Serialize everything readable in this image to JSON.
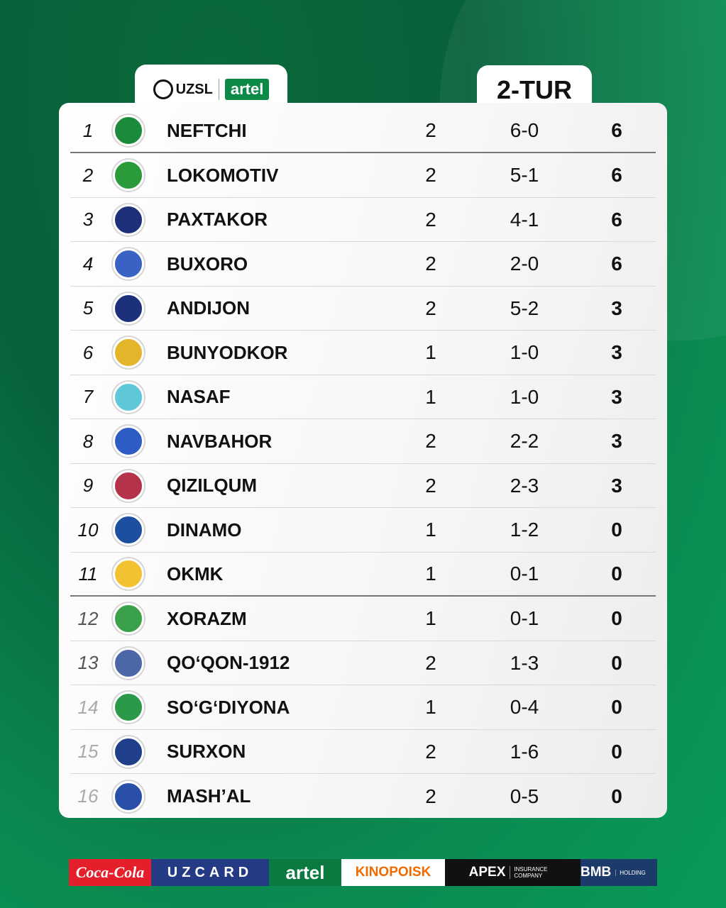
{
  "header": {
    "league_logo": "UZSL",
    "brand_logo": "artel",
    "round": "2-TUR"
  },
  "standings": [
    {
      "rank": "1",
      "team": "NEFTCHI",
      "played": "2",
      "goals": "6-0",
      "points": "6",
      "crest_color": "#1b8a3a"
    },
    {
      "rank": "2",
      "team": "LOKOMOTIV",
      "played": "2",
      "goals": "5-1",
      "points": "6",
      "crest_color": "#2a9a3a"
    },
    {
      "rank": "3",
      "team": "PAXTAKOR",
      "played": "2",
      "goals": "4-1",
      "points": "6",
      "crest_color": "#1e2f7a"
    },
    {
      "rank": "4",
      "team": "BUXORO",
      "played": "2",
      "goals": "2-0",
      "points": "6",
      "crest_color": "#3a62c4"
    },
    {
      "rank": "5",
      "team": "ANDIJON",
      "played": "2",
      "goals": "5-2",
      "points": "3",
      "crest_color": "#1b2f7a"
    },
    {
      "rank": "6",
      "team": "BUNYODKOR",
      "played": "1",
      "goals": "1-0",
      "points": "3",
      "crest_color": "#e3b52a"
    },
    {
      "rank": "7",
      "team": "NASAF",
      "played": "1",
      "goals": "1-0",
      "points": "3",
      "crest_color": "#5fc8d8"
    },
    {
      "rank": "8",
      "team": "NAVBAHOR",
      "played": "2",
      "goals": "2-2",
      "points": "3",
      "crest_color": "#2d5cc4"
    },
    {
      "rank": "9",
      "team": "QIZILQUM",
      "played": "2",
      "goals": "2-3",
      "points": "3",
      "crest_color": "#b5334a"
    },
    {
      "rank": "10",
      "team": "DINAMO",
      "played": "1",
      "goals": "1-2",
      "points": "0",
      "crest_color": "#1c4fa0"
    },
    {
      "rank": "11",
      "team": "OKMK",
      "played": "1",
      "goals": "0-1",
      "points": "0",
      "crest_color": "#f2c230"
    },
    {
      "rank": "12",
      "team": "XORAZM",
      "played": "1",
      "goals": "0-1",
      "points": "0",
      "crest_color": "#3aa04a"
    },
    {
      "rank": "13",
      "team": "QO‘QON-1912",
      "played": "2",
      "goals": "1-3",
      "points": "0",
      "crest_color": "#4b67a8"
    },
    {
      "rank": "14",
      "team": "SO‘G‘DIYONA",
      "played": "1",
      "goals": "0-4",
      "points": "0",
      "crest_color": "#2a9a4a"
    },
    {
      "rank": "15",
      "team": "SURXON",
      "played": "2",
      "goals": "1-6",
      "points": "0",
      "crest_color": "#1f3f8a"
    },
    {
      "rank": "16",
      "team": "MASH’AL",
      "played": "2",
      "goals": "0-5",
      "points": "0",
      "crest_color": "#2a4fa8"
    }
  ],
  "rank_colors": {
    "top": "#111111",
    "mid": "#555555",
    "low": "#aaaaaa"
  },
  "sponsors": [
    {
      "name": "Coca-Cola",
      "bg": "#e41e2b",
      "fg": "#ffffff"
    },
    {
      "name": "UZCARD",
      "bg": "#243a85",
      "fg": "#ffffff"
    },
    {
      "name": "artel",
      "bg": "#0b7a40",
      "fg": "#ffffff"
    },
    {
      "name": "KINOPOISK",
      "bg": "#ffffff",
      "fg": "#f06a00"
    },
    {
      "name": "APEX",
      "sub": "INSURANCE COMPANY",
      "bg": "#111111",
      "fg": "#ffffff"
    },
    {
      "name": "BMB",
      "sub": "HOLDING",
      "bg": "#1c3a6a",
      "fg": "#ffffff"
    }
  ]
}
